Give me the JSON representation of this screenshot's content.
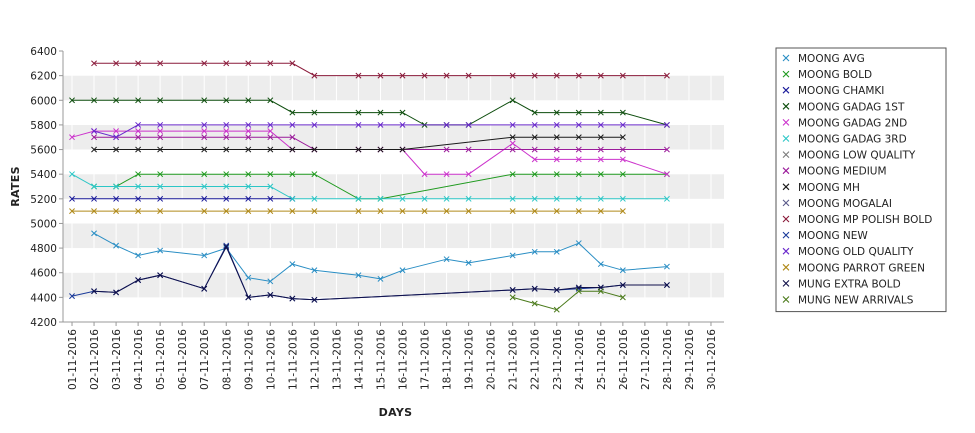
{
  "chart_data": {
    "type": "line",
    "xlabel": "DAYS",
    "ylabel": "RATES",
    "ylim": [
      4200,
      6400
    ],
    "yticks": [
      4200,
      4400,
      4600,
      4800,
      5000,
      5200,
      5400,
      5600,
      5800,
      6000,
      6200,
      6400
    ],
    "x": [
      "01-11-2016",
      "02-11-2016",
      "03-11-2016",
      "04-11-2016",
      "05-11-2016",
      "06-11-2016",
      "07-11-2016",
      "08-11-2016",
      "09-11-2016",
      "10-11-2016",
      "11-11-2016",
      "12-11-2016",
      "13-11-2016",
      "14-11-2016",
      "15-11-2016",
      "16-11-2016",
      "17-11-2016",
      "18-11-2016",
      "19-11-2016",
      "20-11-2016",
      "21-11-2016",
      "22-11-2016",
      "23-11-2016",
      "24-11-2016",
      "25-11-2016",
      "26-11-2016",
      "27-11-2016",
      "28-11-2016",
      "29-11-2016",
      "30-11-2016"
    ],
    "grid": "horizontal bands",
    "legend_position": "right",
    "series": [
      {
        "name": "MOONG AVG",
        "color": "#2a8ec4",
        "marker": "x",
        "points": [
          [
            2,
            4920
          ],
          [
            3,
            4820
          ],
          [
            4,
            4740
          ],
          [
            5,
            4780
          ],
          [
            7,
            4740
          ],
          [
            8,
            4800
          ],
          [
            9,
            4560
          ],
          [
            10,
            4530
          ],
          [
            11,
            4670
          ],
          [
            12,
            4620
          ],
          [
            14,
            4580
          ],
          [
            15,
            4550
          ],
          [
            16,
            4620
          ],
          [
            18,
            4710
          ],
          [
            19,
            4680
          ],
          [
            21,
            4740
          ],
          [
            22,
            4770
          ],
          [
            23,
            4770
          ],
          [
            24,
            4840
          ],
          [
            25,
            4670
          ],
          [
            26,
            4620
          ],
          [
            28,
            4650
          ]
        ]
      },
      {
        "name": "MOONG BOLD",
        "color": "#1f9a1f",
        "marker": "x",
        "points": [
          [
            2,
            5300
          ],
          [
            3,
            5300
          ],
          [
            4,
            5400
          ],
          [
            5,
            5400
          ],
          [
            7,
            5400
          ],
          [
            8,
            5400
          ],
          [
            9,
            5400
          ],
          [
            10,
            5400
          ],
          [
            11,
            5400
          ],
          [
            12,
            5400
          ],
          [
            14,
            5200
          ],
          [
            15,
            5200
          ],
          [
            21,
            5400
          ],
          [
            22,
            5400
          ],
          [
            23,
            5400
          ],
          [
            24,
            5400
          ],
          [
            25,
            5400
          ],
          [
            26,
            5400
          ],
          [
            28,
            5400
          ]
        ]
      },
      {
        "name": "MOONG CHAMKI",
        "color": "#1a1a9a",
        "marker": "x",
        "points": [
          [
            1,
            5200
          ],
          [
            2,
            5200
          ],
          [
            3,
            5200
          ],
          [
            4,
            5200
          ],
          [
            5,
            5200
          ],
          [
            7,
            5200
          ],
          [
            8,
            5200
          ],
          [
            9,
            5200
          ],
          [
            10,
            5200
          ],
          [
            11,
            5200
          ]
        ]
      },
      {
        "name": "MOONG GADAG 1ST",
        "color": "#0d4d0d",
        "marker": "x",
        "points": [
          [
            1,
            6000
          ],
          [
            2,
            6000
          ],
          [
            3,
            6000
          ],
          [
            4,
            6000
          ],
          [
            5,
            6000
          ],
          [
            7,
            6000
          ],
          [
            8,
            6000
          ],
          [
            9,
            6000
          ],
          [
            10,
            6000
          ],
          [
            11,
            5900
          ],
          [
            12,
            5900
          ],
          [
            14,
            5900
          ],
          [
            15,
            5900
          ],
          [
            16,
            5900
          ],
          [
            17,
            5800
          ],
          [
            18,
            5800
          ],
          [
            19,
            5800
          ],
          [
            21,
            6000
          ],
          [
            22,
            5900
          ],
          [
            23,
            5900
          ],
          [
            24,
            5900
          ],
          [
            25,
            5900
          ],
          [
            26,
            5900
          ],
          [
            28,
            5800
          ]
        ]
      },
      {
        "name": "MOONG GADAG 2ND",
        "color": "#cc33cc",
        "marker": "x",
        "points": [
          [
            1,
            5700
          ],
          [
            2,
            5750
          ],
          [
            3,
            5750
          ],
          [
            4,
            5750
          ],
          [
            5,
            5750
          ],
          [
            7,
            5750
          ],
          [
            8,
            5750
          ],
          [
            9,
            5750
          ],
          [
            10,
            5750
          ],
          [
            11,
            5600
          ],
          [
            12,
            5600
          ],
          [
            14,
            5600
          ],
          [
            15,
            5600
          ],
          [
            16,
            5600
          ],
          [
            17,
            5400
          ],
          [
            18,
            5400
          ],
          [
            19,
            5400
          ],
          [
            21,
            5650
          ],
          [
            22,
            5520
          ],
          [
            23,
            5520
          ],
          [
            24,
            5520
          ],
          [
            25,
            5520
          ],
          [
            26,
            5520
          ],
          [
            28,
            5400
          ]
        ]
      },
      {
        "name": "MOONG GADAG 3RD",
        "color": "#2cc6c6",
        "marker": "x",
        "points": [
          [
            1,
            5400
          ],
          [
            2,
            5300
          ],
          [
            3,
            5300
          ],
          [
            4,
            5300
          ],
          [
            5,
            5300
          ],
          [
            7,
            5300
          ],
          [
            8,
            5300
          ],
          [
            9,
            5300
          ],
          [
            10,
            5300
          ],
          [
            11,
            5200
          ],
          [
            12,
            5200
          ],
          [
            14,
            5200
          ],
          [
            15,
            5200
          ],
          [
            16,
            5200
          ],
          [
            17,
            5200
          ],
          [
            18,
            5200
          ],
          [
            19,
            5200
          ],
          [
            21,
            5200
          ],
          [
            22,
            5200
          ],
          [
            23,
            5200
          ],
          [
            24,
            5200
          ],
          [
            25,
            5200
          ],
          [
            26,
            5200
          ],
          [
            28,
            5200
          ]
        ]
      },
      {
        "name": "MOONG LOW QUALITY",
        "color": "#7a7a7a",
        "marker": "x",
        "points": []
      },
      {
        "name": "MOONG MEDIUM",
        "color": "#9a1a9a",
        "marker": "x",
        "points": [
          [
            2,
            5700
          ],
          [
            3,
            5700
          ],
          [
            4,
            5700
          ],
          [
            5,
            5700
          ],
          [
            7,
            5700
          ],
          [
            8,
            5700
          ],
          [
            9,
            5700
          ],
          [
            10,
            5700
          ],
          [
            11,
            5700
          ],
          [
            12,
            5600
          ],
          [
            14,
            5600
          ],
          [
            15,
            5600
          ],
          [
            16,
            5600
          ],
          [
            18,
            5600
          ],
          [
            19,
            5600
          ],
          [
            21,
            5600
          ],
          [
            22,
            5600
          ],
          [
            23,
            5600
          ],
          [
            24,
            5600
          ],
          [
            25,
            5600
          ],
          [
            26,
            5600
          ],
          [
            28,
            5600
          ]
        ]
      },
      {
        "name": "MOONG MH",
        "color": "#1a1a1a",
        "marker": "x",
        "points": [
          [
            2,
            5600
          ],
          [
            3,
            5600
          ],
          [
            4,
            5600
          ],
          [
            5,
            5600
          ],
          [
            7,
            5600
          ],
          [
            8,
            5600
          ],
          [
            9,
            5600
          ],
          [
            10,
            5600
          ],
          [
            11,
            5600
          ],
          [
            12,
            5600
          ],
          [
            14,
            5600
          ],
          [
            15,
            5600
          ],
          [
            16,
            5600
          ],
          [
            21,
            5700
          ],
          [
            22,
            5700
          ],
          [
            23,
            5700
          ],
          [
            24,
            5700
          ],
          [
            25,
            5700
          ],
          [
            26,
            5700
          ]
        ]
      },
      {
        "name": "MOONG MOGALAI",
        "color": "#5a5a8a",
        "marker": "x",
        "points": []
      },
      {
        "name": "MOONG MP POLISH BOLD",
        "color": "#8a1a3a",
        "marker": "x",
        "points": [
          [
            2,
            6300
          ],
          [
            3,
            6300
          ],
          [
            4,
            6300
          ],
          [
            5,
            6300
          ],
          [
            7,
            6300
          ],
          [
            8,
            6300
          ],
          [
            9,
            6300
          ],
          [
            10,
            6300
          ],
          [
            11,
            6300
          ],
          [
            12,
            6200
          ],
          [
            14,
            6200
          ],
          [
            15,
            6200
          ],
          [
            16,
            6200
          ],
          [
            17,
            6200
          ],
          [
            18,
            6200
          ],
          [
            19,
            6200
          ],
          [
            21,
            6200
          ],
          [
            22,
            6200
          ],
          [
            23,
            6200
          ],
          [
            24,
            6200
          ],
          [
            25,
            6200
          ],
          [
            26,
            6200
          ],
          [
            28,
            6200
          ]
        ]
      },
      {
        "name": "MOONG NEW",
        "color": "#1a3a9a",
        "marker": "x",
        "points": [
          [
            1,
            4410
          ],
          [
            2,
            4450
          ],
          [
            3,
            4440
          ],
          [
            4,
            4540
          ],
          [
            5,
            4580
          ],
          [
            7,
            4470
          ],
          [
            8,
            4820
          ],
          [
            9,
            4400
          ],
          [
            10,
            4420
          ],
          [
            11,
            4390
          ],
          [
            12,
            4380
          ],
          [
            21,
            4460
          ],
          [
            22,
            4470
          ],
          [
            23,
            4460
          ],
          [
            24,
            4470
          ],
          [
            25,
            4480
          ],
          [
            26,
            4500
          ],
          [
            28,
            4500
          ]
        ]
      },
      {
        "name": "MOONG OLD QUALITY",
        "color": "#6a2acc",
        "marker": "x",
        "points": [
          [
            2,
            5750
          ],
          [
            3,
            5700
          ],
          [
            4,
            5800
          ],
          [
            5,
            5800
          ],
          [
            7,
            5800
          ],
          [
            8,
            5800
          ],
          [
            9,
            5800
          ],
          [
            10,
            5800
          ],
          [
            11,
            5800
          ],
          [
            12,
            5800
          ],
          [
            14,
            5800
          ],
          [
            15,
            5800
          ],
          [
            16,
            5800
          ],
          [
            18,
            5800
          ],
          [
            19,
            5800
          ],
          [
            21,
            5800
          ],
          [
            22,
            5800
          ],
          [
            23,
            5800
          ],
          [
            24,
            5800
          ],
          [
            25,
            5800
          ],
          [
            26,
            5800
          ],
          [
            28,
            5800
          ]
        ]
      },
      {
        "name": "MOONG PARROT GREEN",
        "color": "#b08a1a",
        "marker": "x",
        "points": [
          [
            1,
            5100
          ],
          [
            2,
            5100
          ],
          [
            3,
            5100
          ],
          [
            4,
            5100
          ],
          [
            5,
            5100
          ],
          [
            7,
            5100
          ],
          [
            8,
            5100
          ],
          [
            9,
            5100
          ],
          [
            10,
            5100
          ],
          [
            11,
            5100
          ],
          [
            12,
            5100
          ],
          [
            14,
            5100
          ],
          [
            15,
            5100
          ],
          [
            16,
            5100
          ],
          [
            17,
            5100
          ],
          [
            18,
            5100
          ],
          [
            19,
            5100
          ],
          [
            21,
            5100
          ],
          [
            22,
            5100
          ],
          [
            23,
            5100
          ],
          [
            24,
            5100
          ],
          [
            25,
            5100
          ],
          [
            26,
            5100
          ]
        ]
      },
      {
        "name": "MUNG EXTRA BOLD",
        "color": "#10104a",
        "marker": "x",
        "points": [
          [
            2,
            4450
          ],
          [
            3,
            4440
          ],
          [
            4,
            4540
          ],
          [
            5,
            4580
          ],
          [
            7,
            4470
          ],
          [
            8,
            4810
          ],
          [
            9,
            4400
          ],
          [
            10,
            4420
          ],
          [
            11,
            4390
          ],
          [
            12,
            4380
          ],
          [
            21,
            4460
          ],
          [
            22,
            4470
          ],
          [
            23,
            4460
          ],
          [
            24,
            4480
          ],
          [
            25,
            4480
          ],
          [
            26,
            4500
          ],
          [
            28,
            4500
          ]
        ]
      },
      {
        "name": "MUNG NEW ARRIVALS",
        "color": "#4a7a1a",
        "marker": "x",
        "points": [
          [
            21,
            4400
          ],
          [
            22,
            4350
          ],
          [
            23,
            4300
          ],
          [
            24,
            4450
          ],
          [
            25,
            4450
          ],
          [
            26,
            4400
          ]
        ]
      }
    ]
  }
}
